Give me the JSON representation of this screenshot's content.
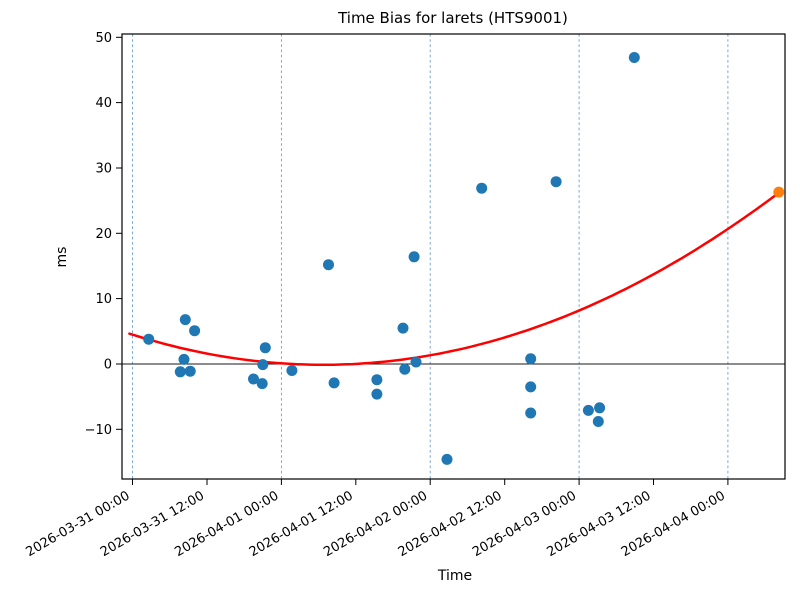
{
  "figure": {
    "background": "#ffffff"
  },
  "chart_data": {
    "type": "scatter",
    "title": "Time Bias for larets (HTS9001)",
    "xlabel": "Time",
    "ylabel": "ms",
    "legend": "none",
    "x_axis": {
      "unit": "datetime, hours offset from 2026-03-31 00:00",
      "xlim_hours": [
        -1.7,
        105.2
      ],
      "tick_interval_hours": 12,
      "ticks": [
        {
          "t_hours": 0,
          "label": "2026-03-31 00:00"
        },
        {
          "t_hours": 12,
          "label": "2026-03-31 12:00"
        },
        {
          "t_hours": 24,
          "label": "2026-04-01 00:00"
        },
        {
          "t_hours": 36,
          "label": "2026-04-01 12:00"
        },
        {
          "t_hours": 48,
          "label": "2026-04-02 00:00"
        },
        {
          "t_hours": 60,
          "label": "2026-04-02 12:00"
        },
        {
          "t_hours": 72,
          "label": "2026-04-03 00:00"
        },
        {
          "t_hours": 84,
          "label": "2026-04-03 12:00"
        },
        {
          "t_hours": 96,
          "label": "2026-04-04 00:00"
        }
      ],
      "day_gridlines_hours": [
        0,
        24,
        48,
        72,
        96
      ],
      "label_rotation_deg": 30
    },
    "y_axis": {
      "ylim": [
        -17.6,
        50.5
      ],
      "ticks": [
        {
          "value": 50,
          "label": "50"
        },
        {
          "value": 40,
          "label": "40"
        },
        {
          "value": 30,
          "label": "30"
        },
        {
          "value": 20,
          "label": "20"
        },
        {
          "value": 10,
          "label": "10"
        },
        {
          "value": 0,
          "label": "0"
        },
        {
          "value": -10,
          "label": "−10"
        }
      ],
      "zero_line": true
    },
    "series": [
      {
        "name": "observations",
        "marker": "circle",
        "color": "#1f77b4",
        "marker_radius": 5.5,
        "points_t_hours_ms": [
          [
            2.6,
            3.8
          ],
          [
            7.7,
            -1.2
          ],
          [
            8.3,
            0.7
          ],
          [
            8.5,
            6.8
          ],
          [
            9.3,
            -1.1
          ],
          [
            10.0,
            5.1
          ],
          [
            19.5,
            -2.3
          ],
          [
            20.9,
            -3.0
          ],
          [
            21.0,
            -0.1
          ],
          [
            21.4,
            2.5
          ],
          [
            25.7,
            -1.0
          ],
          [
            31.6,
            15.2
          ],
          [
            32.5,
            -2.9
          ],
          [
            39.4,
            -2.4
          ],
          [
            39.4,
            -4.6
          ],
          [
            43.6,
            5.5
          ],
          [
            43.9,
            -0.8
          ],
          [
            45.4,
            16.4
          ],
          [
            45.7,
            0.3
          ],
          [
            50.7,
            -14.6
          ],
          [
            56.3,
            26.9
          ],
          [
            64.2,
            0.8
          ],
          [
            64.2,
            -3.5
          ],
          [
            64.2,
            -7.5
          ],
          [
            68.3,
            27.9
          ],
          [
            73.5,
            -7.1
          ],
          [
            75.1,
            -8.8
          ],
          [
            75.3,
            -6.7
          ],
          [
            80.9,
            46.9
          ]
        ]
      },
      {
        "name": "prediction",
        "marker": "circle",
        "color": "#ff7f0e",
        "marker_radius": 5.5,
        "points_t_hours_ms": [
          [
            104.2,
            26.3
          ]
        ]
      }
    ],
    "fit_curve": {
      "name": "quadratic-fit",
      "color": "#ff0000",
      "line_width": 2.5,
      "coeffs_ms_vs_hours": {
        "a": 0.00488,
        "b": -0.3,
        "c": 4.49
      },
      "t_range_hours": [
        -0.5,
        104.2
      ]
    },
    "styles": {
      "gridline_color": "#6b9fc9",
      "axis_color": "#000000",
      "zero_line_color": "#1a1a1a",
      "background": "#ffffff"
    }
  }
}
